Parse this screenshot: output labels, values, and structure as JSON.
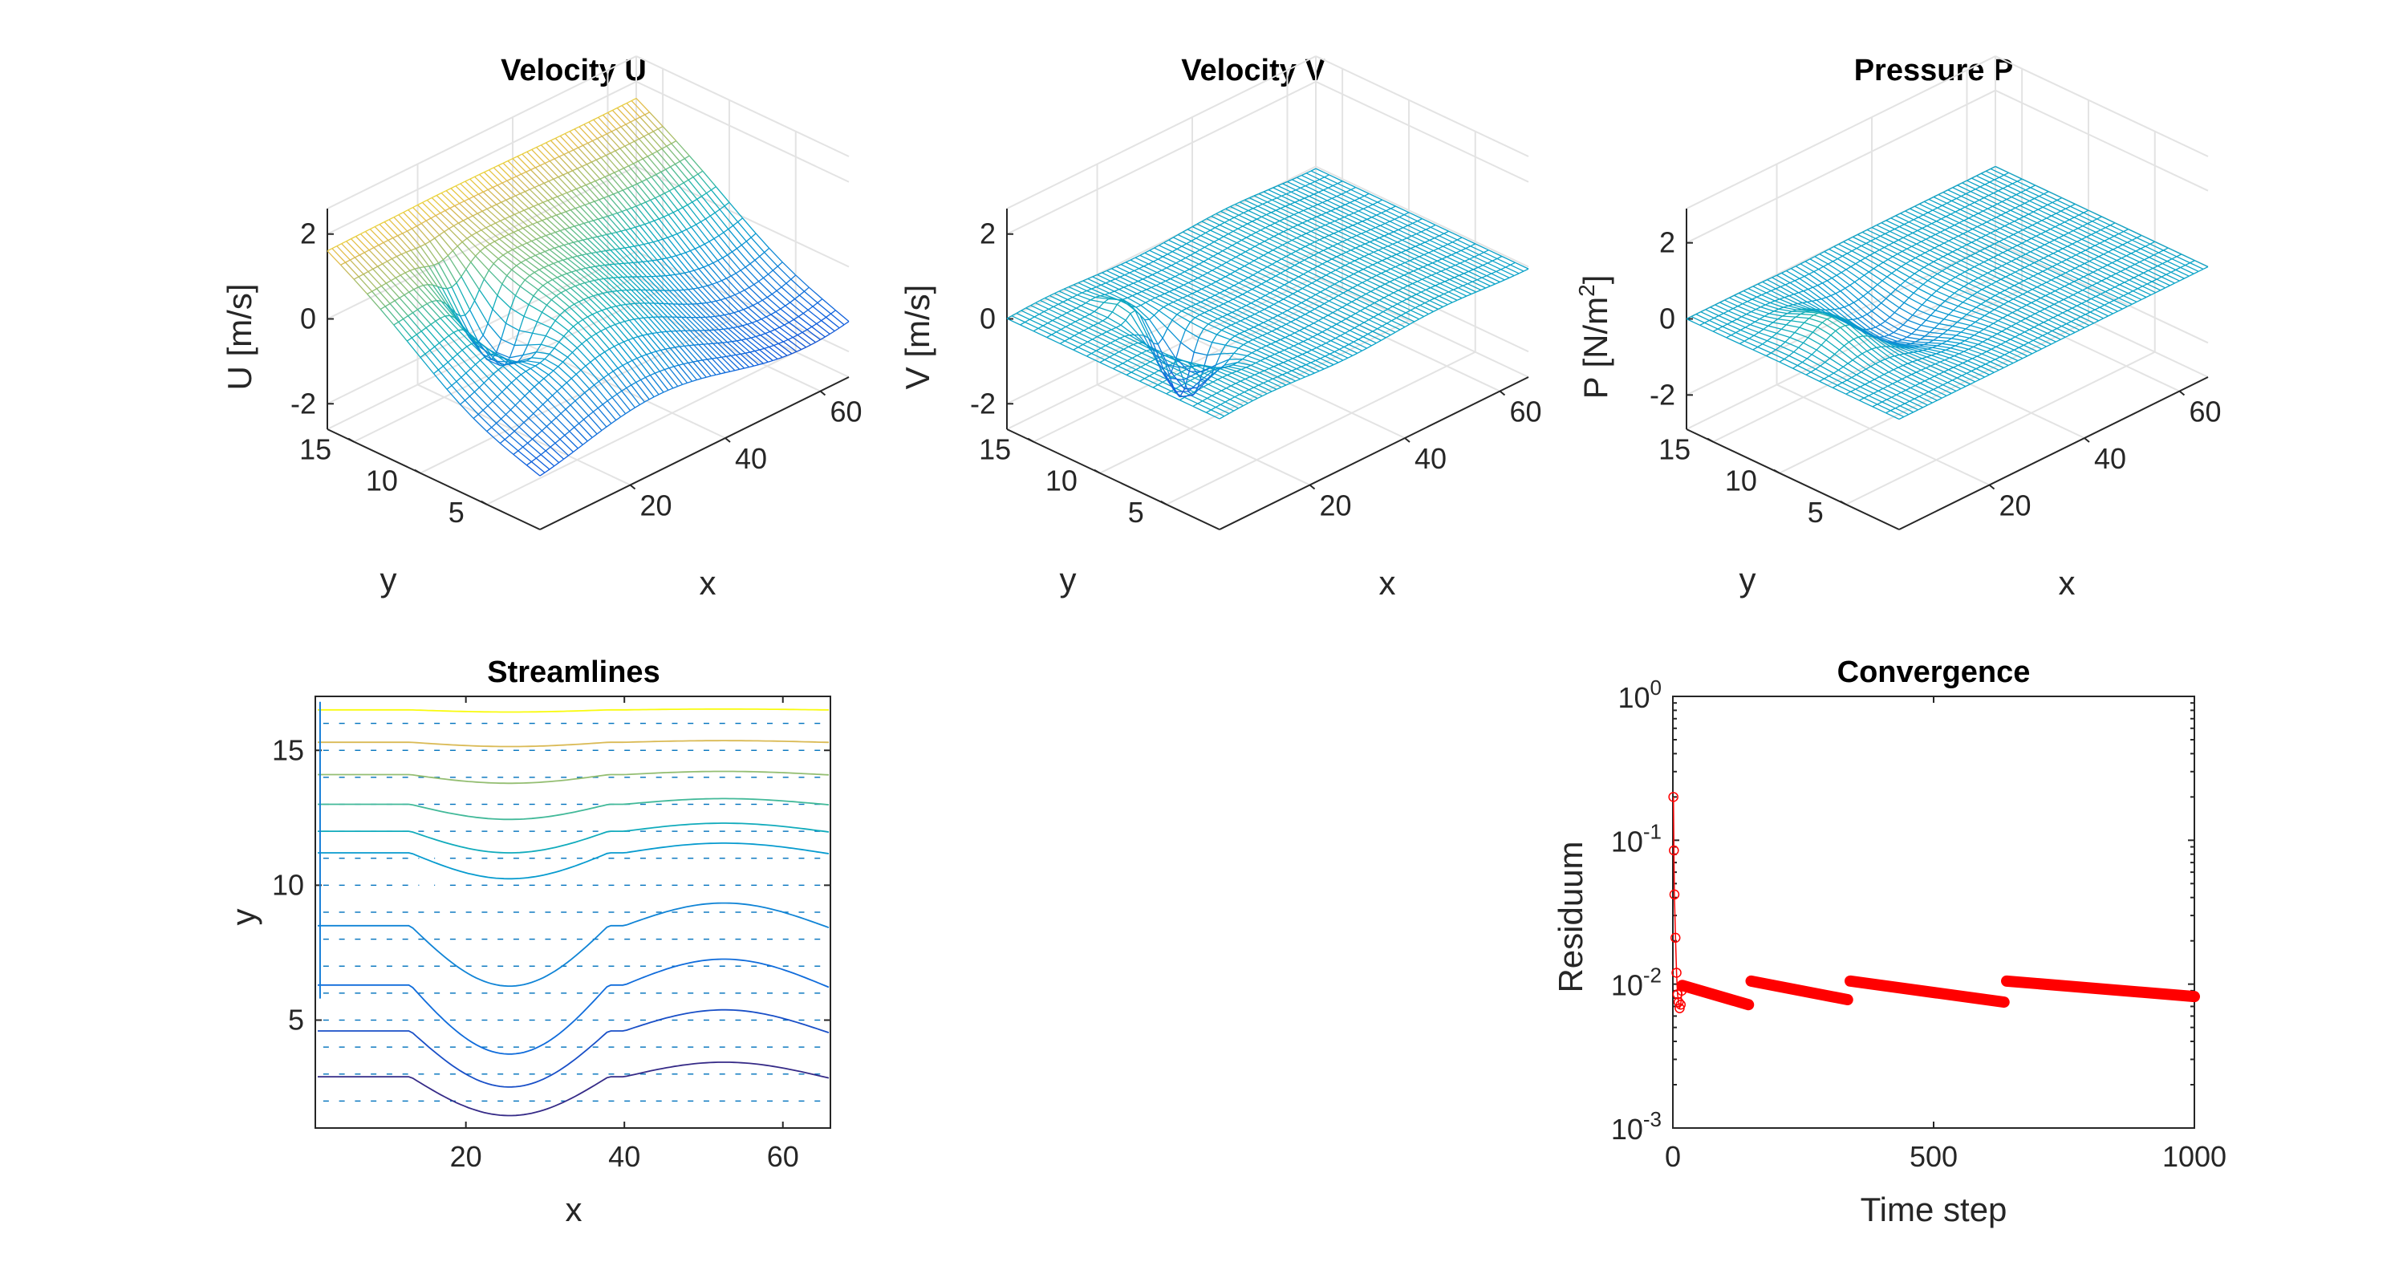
{
  "figure": {
    "background": "#ffffff"
  },
  "chart_data": [
    {
      "type": "surface",
      "title": "Velocity U",
      "xlabel": "x",
      "ylabel": "y",
      "zlabel": "U [m/s]",
      "xlim": [
        1,
        66
      ],
      "ylim": [
        1,
        17
      ],
      "zlim": [
        -2.6,
        2.6
      ],
      "xticks": [
        20,
        40,
        60
      ],
      "yticks": [
        5,
        10,
        15
      ],
      "zticks": [
        -2,
        0,
        2
      ],
      "colormap": "parula",
      "mesh": {
        "nx": 66,
        "ny": 17
      }
    },
    {
      "type": "surface",
      "title": "Velocity V",
      "xlabel": "x",
      "ylabel": "y",
      "zlabel": "V [m/s]",
      "xlim": [
        1,
        66
      ],
      "ylim": [
        1,
        17
      ],
      "zlim": [
        -2.6,
        2.6
      ],
      "xticks": [
        20,
        40,
        60
      ],
      "yticks": [
        5,
        10,
        15
      ],
      "zticks": [
        -2,
        0,
        2
      ],
      "colormap": "parula",
      "mesh": {
        "nx": 66,
        "ny": 17
      }
    },
    {
      "type": "surface",
      "title": "Pressure P",
      "xlabel": "x",
      "ylabel": "y",
      "zlabel_main": "P [N/m",
      "zlabel_sup": "2",
      "zlabel_close": "]",
      "xlim": [
        1,
        66
      ],
      "ylim": [
        1,
        17
      ],
      "zlim": [
        -2.9,
        2.9
      ],
      "xticks": [
        20,
        40,
        60
      ],
      "yticks": [
        5,
        10,
        15
      ],
      "zticks": [
        -2,
        0,
        2
      ],
      "colormap": "parula",
      "mesh": {
        "nx": 66,
        "ny": 17
      }
    },
    {
      "type": "streamline",
      "title": "Streamlines",
      "xlabel": "x",
      "ylabel": "y",
      "xlim": [
        1,
        66
      ],
      "ylim": [
        1,
        17
      ],
      "xticks": [
        20,
        40,
        60
      ],
      "yticks": [
        5,
        10,
        15
      ],
      "quiver_color": "#0072bd",
      "streamlines": [
        {
          "y0": 2.9,
          "dip": 1.8
        },
        {
          "y0": 4.6,
          "dip": 2.6
        },
        {
          "y0": 6.3,
          "dip": 3.2
        },
        {
          "y0": 8.5,
          "dip": 2.8
        },
        {
          "y0": 11.2,
          "dip": 1.2
        },
        {
          "y0": 12.0,
          "dip": 1.0
        },
        {
          "y0": 13.0,
          "dip": 0.7
        },
        {
          "y0": 14.1,
          "dip": 0.4
        },
        {
          "y0": 15.3,
          "dip": 0.2
        },
        {
          "y0": 16.5,
          "dip": 0.1
        }
      ]
    },
    {
      "type": "line",
      "title": "Convergence",
      "xlabel": "Time step",
      "ylabel": "Residuum",
      "xlim": [
        0,
        1000
      ],
      "ylim": [
        0.001,
        1
      ],
      "yscale": "log",
      "xticks": [
        0,
        500,
        1000
      ],
      "ytick_base": "10",
      "ytick_exponents": [
        "-3",
        "-2",
        "-1",
        "0"
      ],
      "color": "#ff0000",
      "marker": "o",
      "early_points": [
        [
          1,
          0.2
        ],
        [
          2,
          0.085
        ],
        [
          3,
          0.042
        ],
        [
          5,
          0.021
        ],
        [
          7,
          0.012
        ],
        [
          9,
          0.0085
        ],
        [
          11,
          0.0075
        ],
        [
          13,
          0.0068
        ],
        [
          15,
          0.0072
        ],
        [
          17,
          0.009
        ],
        [
          19,
          0.0098
        ]
      ],
      "segments": [
        {
          "x": [
            18,
            145
          ],
          "y": [
            0.0098,
            0.0072
          ]
        },
        {
          "x": [
            150,
            335
          ],
          "y": [
            0.0105,
            0.0078
          ]
        },
        {
          "x": [
            340,
            635
          ],
          "y": [
            0.0105,
            0.0075
          ]
        },
        {
          "x": [
            640,
            1000
          ],
          "y": [
            0.0105,
            0.0082
          ]
        }
      ]
    }
  ]
}
